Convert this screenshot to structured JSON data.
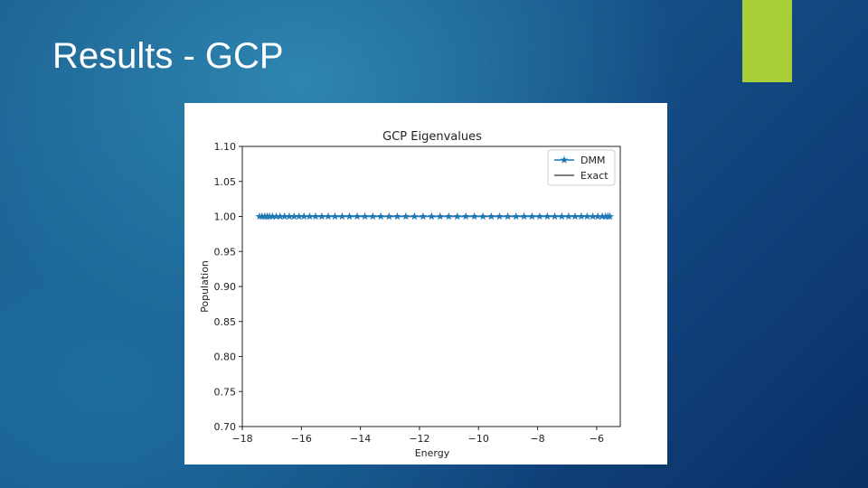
{
  "slide": {
    "title": "Results - GCP",
    "accent_color": "#a8cf38"
  },
  "chart_data": {
    "type": "line",
    "title": "GCP Eigenvalues",
    "xlabel": "Energy",
    "ylabel": "Population",
    "xlim": [
      -18,
      -5.2
    ],
    "ylim": [
      0.7,
      1.1
    ],
    "xticks": [
      -18,
      -16,
      -14,
      -12,
      -10,
      -8,
      -6
    ],
    "xtick_labels": [
      "−18",
      "−16",
      "−14",
      "−12",
      "−10",
      "−8",
      "−6"
    ],
    "yticks": [
      0.7,
      0.75,
      0.8,
      0.85,
      0.9,
      0.95,
      1.0,
      1.05,
      1.1
    ],
    "ytick_labels": [
      "0.70",
      "0.75",
      "0.80",
      "0.85",
      "0.90",
      "0.95",
      "1.00",
      "1.05",
      "1.10"
    ],
    "grid": false,
    "legend_position": "top-right",
    "series": [
      {
        "name": "DMM",
        "color": "#1f77b4",
        "marker": "star",
        "x": [
          -17.42,
          -17.33,
          -17.24,
          -17.16,
          -17.08,
          -16.98,
          -16.85,
          -16.72,
          -16.57,
          -16.41,
          -16.25,
          -16.08,
          -15.91,
          -15.72,
          -15.52,
          -15.31,
          -15.09,
          -14.86,
          -14.62,
          -14.37,
          -14.11,
          -13.85,
          -13.58,
          -13.31,
          -13.03,
          -12.75,
          -12.46,
          -12.17,
          -11.88,
          -11.59,
          -11.3,
          -11.01,
          -10.72,
          -10.43,
          -10.14,
          -9.85,
          -9.57,
          -9.29,
          -9.01,
          -8.73,
          -8.46,
          -8.19,
          -7.93,
          -7.67,
          -7.42,
          -7.18,
          -6.95,
          -6.73,
          -6.52,
          -6.32,
          -6.13,
          -5.96,
          -5.81,
          -5.7,
          -5.62,
          -5.55
        ],
        "y": [
          1.0,
          1.0,
          1.0,
          1.0,
          1.0,
          1.0,
          1.0,
          1.0,
          1.0,
          1.0,
          1.0,
          1.0,
          1.0,
          1.0,
          1.0,
          1.0,
          1.0,
          1.0,
          1.0,
          1.0,
          1.0,
          1.0,
          1.0,
          1.0,
          1.0,
          1.0,
          1.0,
          1.0,
          1.0,
          1.0,
          1.0,
          1.0,
          1.0,
          1.0,
          1.0,
          1.0,
          1.0,
          1.0,
          1.0,
          1.0,
          1.0,
          1.0,
          1.0,
          1.0,
          1.0,
          1.0,
          1.0,
          1.0,
          1.0,
          1.0,
          1.0,
          1.0,
          1.0,
          1.0,
          1.0,
          1.0
        ]
      },
      {
        "name": "Exact",
        "color": "#333333",
        "marker": "none",
        "x": [
          -17.42,
          -5.55
        ],
        "y": [
          1.0,
          1.0
        ]
      }
    ]
  }
}
